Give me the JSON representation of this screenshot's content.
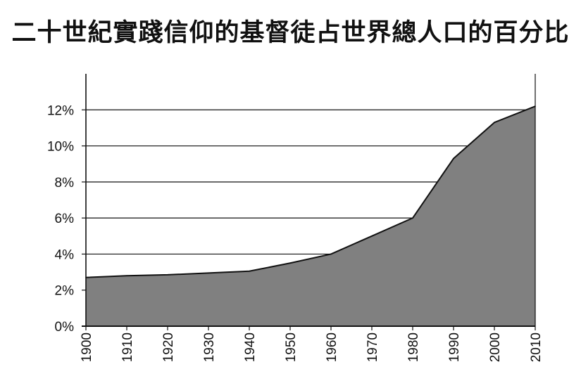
{
  "chart_data": {
    "type": "area",
    "title": "二十世紀實踐信仰的基督徒占世界總人口的百分比",
    "x": [
      1900,
      1910,
      1920,
      1930,
      1940,
      1950,
      1960,
      1970,
      1980,
      1990,
      2000,
      2010
    ],
    "x_tick_labels": [
      "1900",
      "1910",
      "1920",
      "1930",
      "1940",
      "1950",
      "1960",
      "1970",
      "1980",
      "1990",
      "2000",
      "2010"
    ],
    "series": [
      {
        "values": [
          2.7,
          2.8,
          2.85,
          2.95,
          3.05,
          3.5,
          4.0,
          5.0,
          6.0,
          9.3,
          11.3,
          12.2
        ]
      }
    ],
    "y_tick_values": [
      0,
      2,
      4,
      6,
      8,
      10,
      12
    ],
    "y_tick_labels": [
      "0%",
      "2%",
      "4%",
      "6%",
      "8%",
      "10%",
      "12%"
    ],
    "xlim": [
      1900,
      2010
    ],
    "ylim": [
      0,
      14
    ],
    "grid": true,
    "fill_color": "#808080",
    "line_color": "#111111"
  }
}
